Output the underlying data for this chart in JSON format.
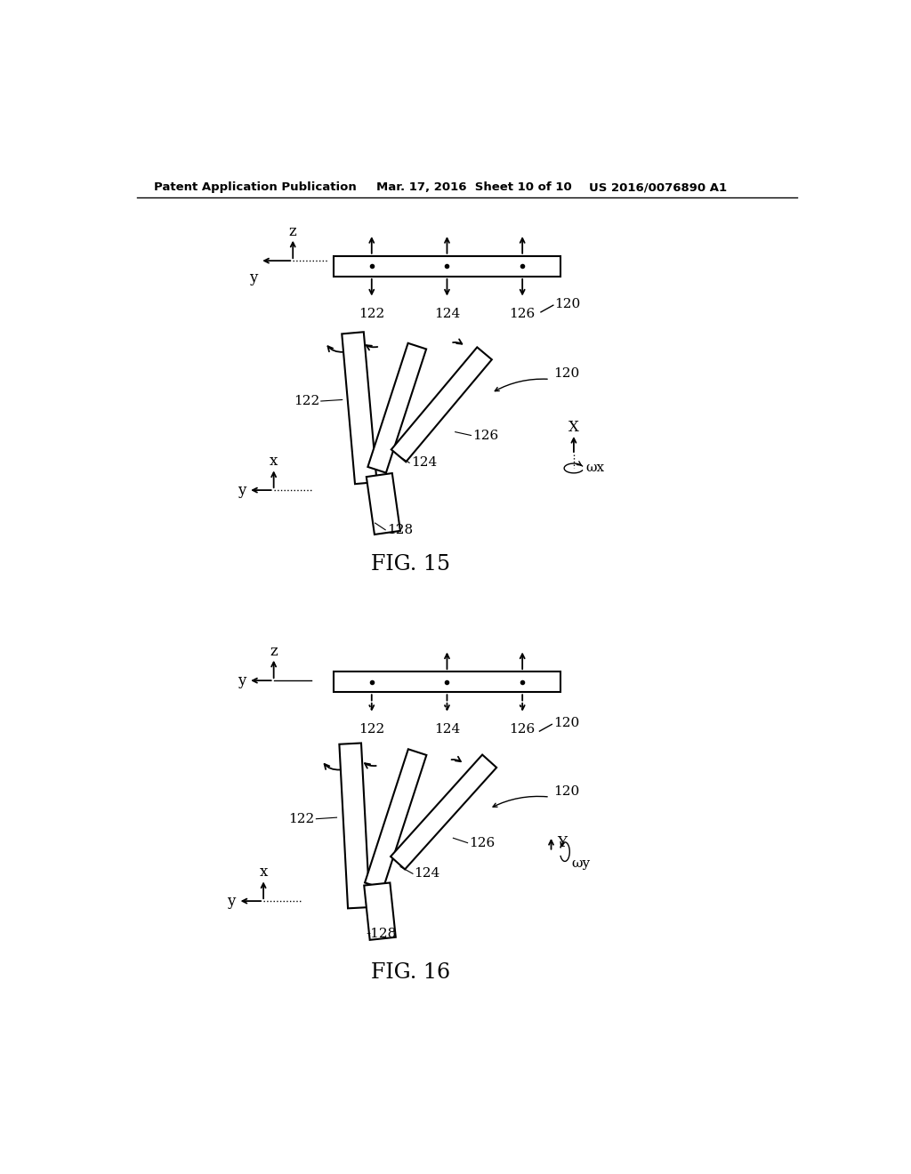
{
  "title_left": "Patent Application Publication",
  "title_mid": "Mar. 17, 2016  Sheet 10 of 10",
  "title_right": "US 2016/0076890 A1",
  "fig15_label": "FIG. 15",
  "fig16_label": "FIG. 16",
  "background_color": "#ffffff",
  "line_color": "#000000",
  "omega_x": "ωx",
  "omega_y": "ωy"
}
